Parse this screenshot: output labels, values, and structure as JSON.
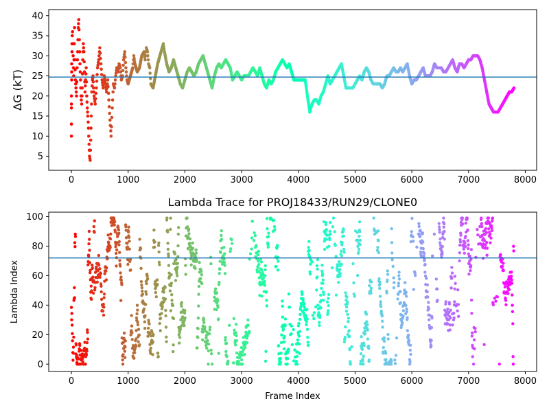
{
  "chart_data": [
    {
      "type": "scatter",
      "title": "",
      "ylabel": "ΔG (kT)",
      "xlabel": "",
      "xlim": [
        -400,
        8200
      ],
      "ylim": [
        1.5,
        41.5
      ],
      "xticks": [
        0,
        1000,
        2000,
        3000,
        4000,
        5000,
        6000,
        7000,
        8000
      ],
      "yticks": [
        5,
        10,
        15,
        20,
        25,
        30,
        35,
        40
      ],
      "hline": 24.7,
      "hline_color": "#1f77b4",
      "colormap": "rainbow (reversed: red at frame 0, violet at last frame)",
      "frame_range": [
        0,
        7800
      ],
      "series_points": [
        [
          0,
          10
        ],
        [
          0,
          13
        ],
        [
          0,
          17
        ],
        [
          0,
          18
        ],
        [
          0,
          20
        ],
        [
          5,
          24
        ],
        [
          5,
          26
        ],
        [
          5,
          28
        ],
        [
          10,
          31
        ],
        [
          10,
          33
        ],
        [
          15,
          35
        ],
        [
          20,
          36
        ],
        [
          30,
          30
        ],
        [
          35,
          27
        ],
        [
          40,
          25
        ],
        [
          50,
          33
        ],
        [
          55,
          37
        ],
        [
          60,
          29
        ],
        [
          70,
          24
        ],
        [
          80,
          22
        ],
        [
          90,
          20
        ],
        [
          100,
          27
        ],
        [
          110,
          31
        ],
        [
          120,
          37
        ],
        [
          130,
          39
        ],
        [
          140,
          34
        ],
        [
          150,
          28
        ],
        [
          160,
          24
        ],
        [
          170,
          20
        ],
        [
          180,
          18
        ],
        [
          190,
          22
        ],
        [
          200,
          29
        ],
        [
          210,
          33
        ],
        [
          220,
          31
        ],
        [
          230,
          26
        ],
        [
          240,
          21
        ],
        [
          250,
          24
        ],
        [
          260,
          27
        ],
        [
          270,
          20
        ],
        [
          280,
          17
        ],
        [
          290,
          15
        ],
        [
          300,
          12
        ],
        [
          310,
          8
        ],
        [
          320,
          5
        ],
        [
          330,
          4
        ],
        [
          340,
          9
        ],
        [
          350,
          15
        ],
        [
          360,
          21
        ],
        [
          370,
          24
        ],
        [
          380,
          25
        ],
        [
          390,
          22
        ],
        [
          400,
          20
        ],
        [
          420,
          18
        ],
        [
          440,
          22
        ],
        [
          460,
          27
        ],
        [
          480,
          29
        ],
        [
          500,
          32
        ],
        [
          520,
          28
        ],
        [
          540,
          24
        ],
        [
          560,
          22
        ],
        [
          580,
          25
        ],
        [
          600,
          23
        ],
        [
          620,
          21
        ],
        [
          640,
          24
        ],
        [
          660,
          19
        ],
        [
          680,
          14
        ],
        [
          700,
          10
        ],
        [
          720,
          17
        ],
        [
          740,
          23
        ],
        [
          760,
          22
        ],
        [
          780,
          25
        ],
        [
          800,
          27
        ],
        [
          820,
          26
        ],
        [
          840,
          28
        ],
        [
          860,
          27
        ],
        [
          880,
          24
        ],
        [
          900,
          25
        ],
        [
          920,
          29
        ],
        [
          940,
          31
        ],
        [
          960,
          27
        ],
        [
          980,
          24
        ],
        [
          1000,
          23
        ],
        [
          1040,
          25
        ],
        [
          1080,
          27
        ],
        [
          1100,
          30
        ],
        [
          1120,
          28
        ],
        [
          1160,
          26
        ],
        [
          1200,
          27
        ],
        [
          1240,
          30
        ],
        [
          1280,
          31
        ],
        [
          1300,
          29
        ],
        [
          1320,
          32
        ],
        [
          1340,
          31
        ],
        [
          1360,
          28
        ],
        [
          1380,
          27
        ],
        [
          1400,
          23
        ],
        [
          1440,
          22
        ],
        [
          1480,
          25
        ],
        [
          1520,
          28
        ],
        [
          1560,
          30
        ],
        [
          1600,
          32
        ],
        [
          1620,
          33
        ],
        [
          1640,
          31
        ],
        [
          1680,
          28
        ],
        [
          1720,
          26
        ],
        [
          1760,
          27
        ],
        [
          1800,
          29
        ],
        [
          1840,
          27
        ],
        [
          1880,
          25
        ],
        [
          1920,
          23
        ],
        [
          1960,
          22
        ],
        [
          2000,
          24
        ],
        [
          2040,
          26
        ],
        [
          2080,
          27
        ],
        [
          2120,
          26
        ],
        [
          2160,
          25
        ],
        [
          2200,
          26
        ],
        [
          2240,
          28
        ],
        [
          2280,
          29
        ],
        [
          2320,
          30
        ],
        [
          2360,
          28
        ],
        [
          2400,
          26
        ],
        [
          2440,
          24
        ],
        [
          2480,
          22
        ],
        [
          2520,
          25
        ],
        [
          2560,
          27
        ],
        [
          2600,
          28
        ],
        [
          2640,
          27
        ],
        [
          2680,
          28
        ],
        [
          2720,
          29
        ],
        [
          2760,
          28
        ],
        [
          2800,
          27
        ],
        [
          2840,
          24
        ],
        [
          2880,
          25
        ],
        [
          2920,
          26
        ],
        [
          2960,
          25
        ],
        [
          3000,
          24
        ],
        [
          3040,
          25
        ],
        [
          3080,
          25
        ],
        [
          3120,
          25
        ],
        [
          3160,
          26
        ],
        [
          3200,
          27
        ],
        [
          3240,
          26
        ],
        [
          3280,
          25
        ],
        [
          3320,
          27
        ],
        [
          3360,
          25
        ],
        [
          3400,
          23
        ],
        [
          3440,
          22
        ],
        [
          3480,
          24
        ],
        [
          3520,
          23
        ],
        [
          3560,
          24
        ],
        [
          3600,
          26
        ],
        [
          3640,
          27
        ],
        [
          3680,
          28
        ],
        [
          3720,
          29
        ],
        [
          3760,
          28
        ],
        [
          3800,
          27
        ],
        [
          3840,
          28
        ],
        [
          3880,
          26
        ],
        [
          3920,
          24
        ],
        [
          3960,
          24
        ],
        [
          4000,
          24
        ],
        [
          4040,
          24
        ],
        [
          4080,
          24
        ],
        [
          4120,
          24
        ],
        [
          4160,
          20
        ],
        [
          4200,
          16
        ],
        [
          4240,
          18
        ],
        [
          4280,
          19
        ],
        [
          4320,
          19
        ],
        [
          4360,
          18
        ],
        [
          4400,
          20
        ],
        [
          4440,
          21
        ],
        [
          4480,
          23
        ],
        [
          4520,
          25
        ],
        [
          4560,
          23
        ],
        [
          4600,
          24
        ],
        [
          4640,
          25
        ],
        [
          4680,
          26
        ],
        [
          4720,
          27
        ],
        [
          4760,
          28
        ],
        [
          4800,
          25
        ],
        [
          4840,
          22
        ],
        [
          4880,
          22
        ],
        [
          4920,
          22
        ],
        [
          4960,
          22
        ],
        [
          5000,
          23
        ],
        [
          5040,
          24
        ],
        [
          5080,
          25
        ],
        [
          5120,
          24
        ],
        [
          5160,
          26
        ],
        [
          5200,
          27
        ],
        [
          5240,
          26
        ],
        [
          5280,
          24
        ],
        [
          5320,
          23
        ],
        [
          5360,
          23
        ],
        [
          5400,
          23
        ],
        [
          5440,
          23
        ],
        [
          5480,
          22
        ],
        [
          5520,
          23
        ],
        [
          5560,
          25
        ],
        [
          5600,
          25
        ],
        [
          5640,
          26
        ],
        [
          5680,
          27
        ],
        [
          5720,
          26
        ],
        [
          5760,
          26
        ],
        [
          5800,
          27
        ],
        [
          5840,
          26
        ],
        [
          5880,
          27
        ],
        [
          5920,
          28
        ],
        [
          5960,
          25
        ],
        [
          6000,
          23
        ],
        [
          6040,
          24
        ],
        [
          6080,
          24
        ],
        [
          6120,
          25
        ],
        [
          6160,
          26
        ],
        [
          6200,
          27
        ],
        [
          6240,
          25
        ],
        [
          6280,
          25
        ],
        [
          6320,
          25
        ],
        [
          6360,
          26
        ],
        [
          6400,
          28
        ],
        [
          6440,
          27
        ],
        [
          6480,
          27
        ],
        [
          6520,
          27
        ],
        [
          6560,
          26
        ],
        [
          6600,
          26
        ],
        [
          6640,
          27
        ],
        [
          6680,
          28
        ],
        [
          6720,
          29
        ],
        [
          6760,
          27
        ],
        [
          6800,
          26
        ],
        [
          6840,
          28
        ],
        [
          6880,
          28
        ],
        [
          6920,
          27
        ],
        [
          6960,
          28
        ],
        [
          7000,
          29
        ],
        [
          7040,
          29
        ],
        [
          7080,
          30
        ],
        [
          7120,
          30
        ],
        [
          7160,
          30
        ],
        [
          7200,
          29
        ],
        [
          7240,
          27
        ],
        [
          7280,
          24
        ],
        [
          7320,
          21
        ],
        [
          7360,
          18
        ],
        [
          7400,
          17
        ],
        [
          7440,
          16
        ],
        [
          7480,
          16
        ],
        [
          7520,
          16
        ],
        [
          7560,
          17
        ],
        [
          7600,
          18
        ],
        [
          7640,
          19
        ],
        [
          7680,
          20
        ],
        [
          7720,
          21
        ],
        [
          7760,
          21
        ],
        [
          7800,
          22
        ]
      ]
    },
    {
      "type": "scatter",
      "title": "Lambda Trace for PROJ18433/RUN29/CLONE0",
      "xlabel": "Frame Index",
      "ylabel": "Lambda Index",
      "xlim": [
        -400,
        8200
      ],
      "ylim": [
        -5,
        103
      ],
      "xticks": [
        0,
        1000,
        2000,
        3000,
        4000,
        5000,
        6000,
        7000,
        8000
      ],
      "yticks": [
        0,
        20,
        40,
        60,
        80,
        100
      ],
      "hline": 72,
      "hline_color": "#1f77b4",
      "colormap": "rainbow (reversed: red at frame 0, violet at last frame)",
      "frame_range": [
        0,
        7800
      ],
      "value_range": [
        0,
        99
      ]
    }
  ]
}
